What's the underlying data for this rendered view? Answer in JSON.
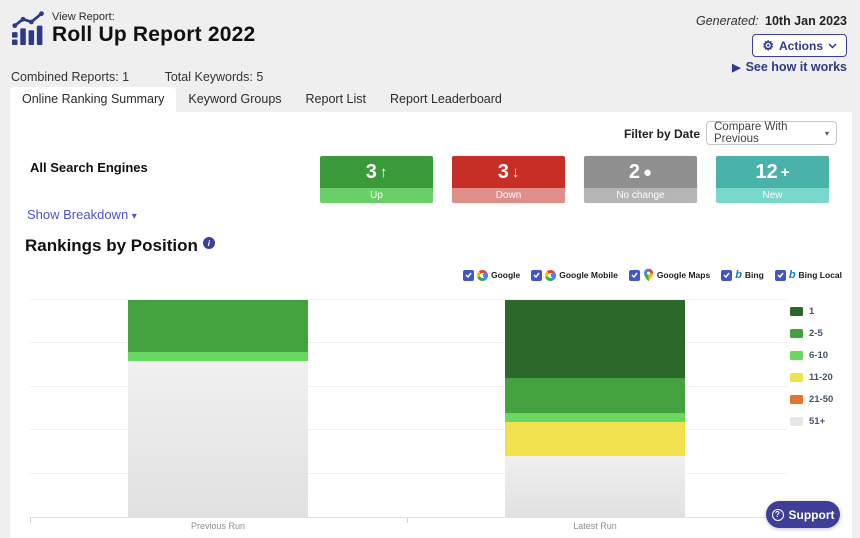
{
  "page": {
    "background": "#f0efef",
    "brand_color": "#2e3a8c",
    "link_color": "#4f52cf",
    "checkbox_color": "#4455c4"
  },
  "header": {
    "eyebrow": "View Report:",
    "title": "Roll Up Report 2022",
    "generated_label": "Generated:",
    "generated_date": "10th Jan 2023",
    "actions_label": "Actions",
    "see_how_it_works": "See how it works",
    "combined_reports": "Combined Reports: 1",
    "total_keywords": "Total Keywords: 5"
  },
  "tabs": [
    {
      "label": "Online Ranking Summary",
      "active": true
    },
    {
      "label": "Keyword Groups",
      "active": false
    },
    {
      "label": "Report List",
      "active": false
    },
    {
      "label": "Report Leaderboard",
      "active": false
    }
  ],
  "filter": {
    "label": "Filter by Date",
    "selected_option": "Compare With Previous"
  },
  "summary": {
    "section_label": "All Search Engines",
    "show_breakdown_label": "Show Breakdown",
    "cards": [
      {
        "value": "3",
        "glyph": "↑",
        "label": "Up",
        "color": "#3a9a39",
        "footer_color": "#6ace69"
      },
      {
        "value": "3",
        "glyph": "↓",
        "label": "Down",
        "color": "#c62e26",
        "footer_color": "#de8f8a"
      },
      {
        "value": "2",
        "glyph": "●",
        "label": "No change",
        "color": "#8f8f8f",
        "footer_color": "#b5b5b5"
      },
      {
        "value": "12",
        "glyph": "+",
        "label": "New",
        "color": "#49b3a9",
        "footer_color": "#79d7cb"
      }
    ]
  },
  "engines": [
    {
      "label": "Google",
      "icon": "google-icon",
      "checked": true
    },
    {
      "label": "Google Mobile",
      "icon": "google-icon",
      "checked": true
    },
    {
      "label": "Google Maps",
      "icon": "google-maps-icon",
      "checked": true
    },
    {
      "label": "Bing",
      "icon": "bing-icon",
      "checked": true
    },
    {
      "label": "Bing Local",
      "icon": "bing-icon",
      "checked": true
    }
  ],
  "chart_data": {
    "type": "bar",
    "stacked": true,
    "title": "Rankings by Position",
    "categories": [
      "Previous Run",
      "Latest Run"
    ],
    "buckets": [
      {
        "label": "1",
        "color": "#2d682b"
      },
      {
        "label": "2-5",
        "color": "#44a23e"
      },
      {
        "label": "6-10",
        "color": "#69d760"
      },
      {
        "label": "11-20",
        "color": "#f1e14f"
      },
      {
        "label": "21-50",
        "color": "#e1762c"
      },
      {
        "label": "51+",
        "color": "#e7e7e7"
      }
    ],
    "series": [
      {
        "name": "1",
        "values": [
          0,
          9
        ]
      },
      {
        "name": "2-5",
        "values": [
          6,
          4
        ]
      },
      {
        "name": "6-10",
        "values": [
          1,
          1
        ]
      },
      {
        "name": "11-20",
        "values": [
          0,
          4
        ]
      },
      {
        "name": "21-50",
        "values": [
          0,
          0
        ]
      },
      {
        "name": "51+",
        "values": [
          18,
          7
        ]
      }
    ],
    "total_per_bar": 25,
    "grid": true,
    "legend_position": "right"
  },
  "support_label": "Support"
}
